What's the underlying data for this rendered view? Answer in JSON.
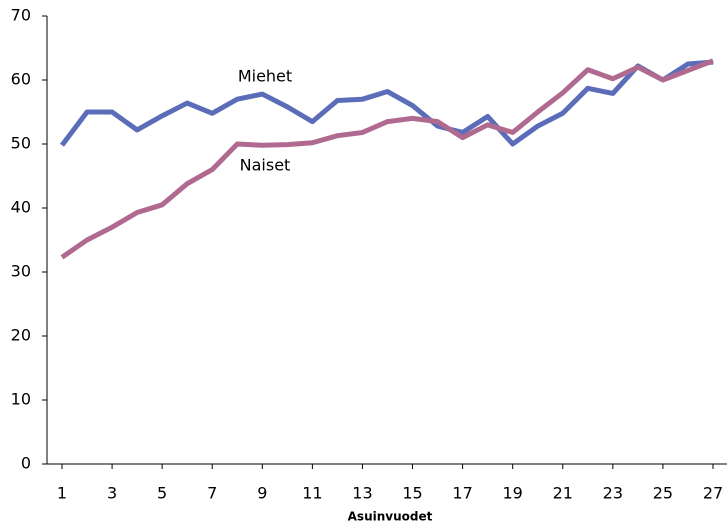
{
  "chart_data": {
    "type": "line",
    "x_label": "Asuinvuodet",
    "x": [
      1,
      2,
      3,
      4,
      5,
      6,
      7,
      8,
      9,
      10,
      11,
      12,
      13,
      14,
      15,
      16,
      17,
      18,
      19,
      20,
      21,
      22,
      23,
      24,
      25,
      26,
      27
    ],
    "xlim": [
      1,
      27
    ],
    "xticks": [
      1,
      3,
      5,
      7,
      9,
      11,
      13,
      15,
      17,
      19,
      21,
      23,
      25,
      27
    ],
    "ylim": [
      0,
      70
    ],
    "yticks": [
      0,
      10,
      20,
      30,
      40,
      50,
      60,
      70
    ],
    "grid": false,
    "series": [
      {
        "name": "Miehet",
        "color": "#5b6db8",
        "values": [
          49.8,
          55,
          55,
          52.2,
          54.4,
          56.4,
          54.8,
          57,
          57.8,
          55.8,
          53.5,
          56.8,
          57,
          58.2,
          56,
          52.8,
          51.8,
          54.3,
          50,
          52.8,
          54.8,
          58.7,
          57.9,
          62.2,
          60,
          62.5,
          62.8
        ]
      },
      {
        "name": "Naiset",
        "color": "#b06a90",
        "values": [
          32.3,
          35,
          37,
          39.3,
          40.5,
          43.8,
          46,
          50,
          49.8,
          49.9,
          50.2,
          51.3,
          51.8,
          53.5,
          54,
          53.5,
          51,
          53,
          51.8,
          55,
          58,
          61.6,
          60.2,
          62,
          60,
          61.5,
          63
        ]
      }
    ]
  }
}
